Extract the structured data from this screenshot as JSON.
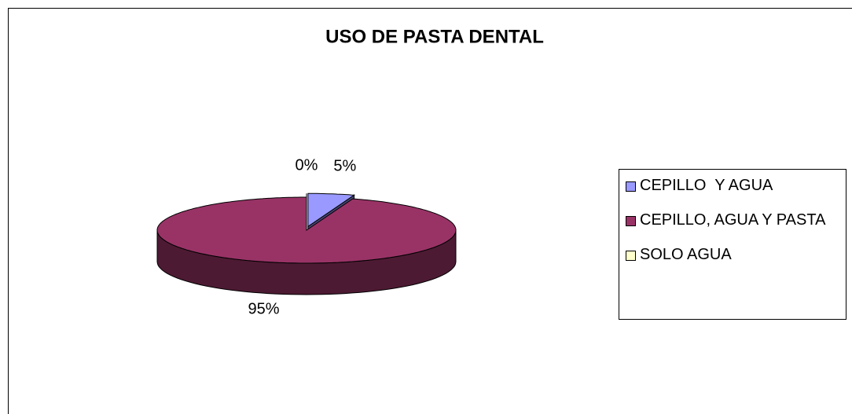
{
  "chart_data": {
    "type": "pie",
    "title": "USO DE PASTA DENTAL",
    "categories": [
      "CEPILLO  Y AGUA",
      "CEPILLO, AGUA Y PASTA",
      "SOLO AGUA"
    ],
    "values": [
      5,
      95,
      0
    ],
    "value_labels": [
      "5%",
      "95%",
      "0%"
    ],
    "colors": [
      "#9999ff",
      "#993366",
      "#ffffcc"
    ],
    "legend": "right"
  }
}
